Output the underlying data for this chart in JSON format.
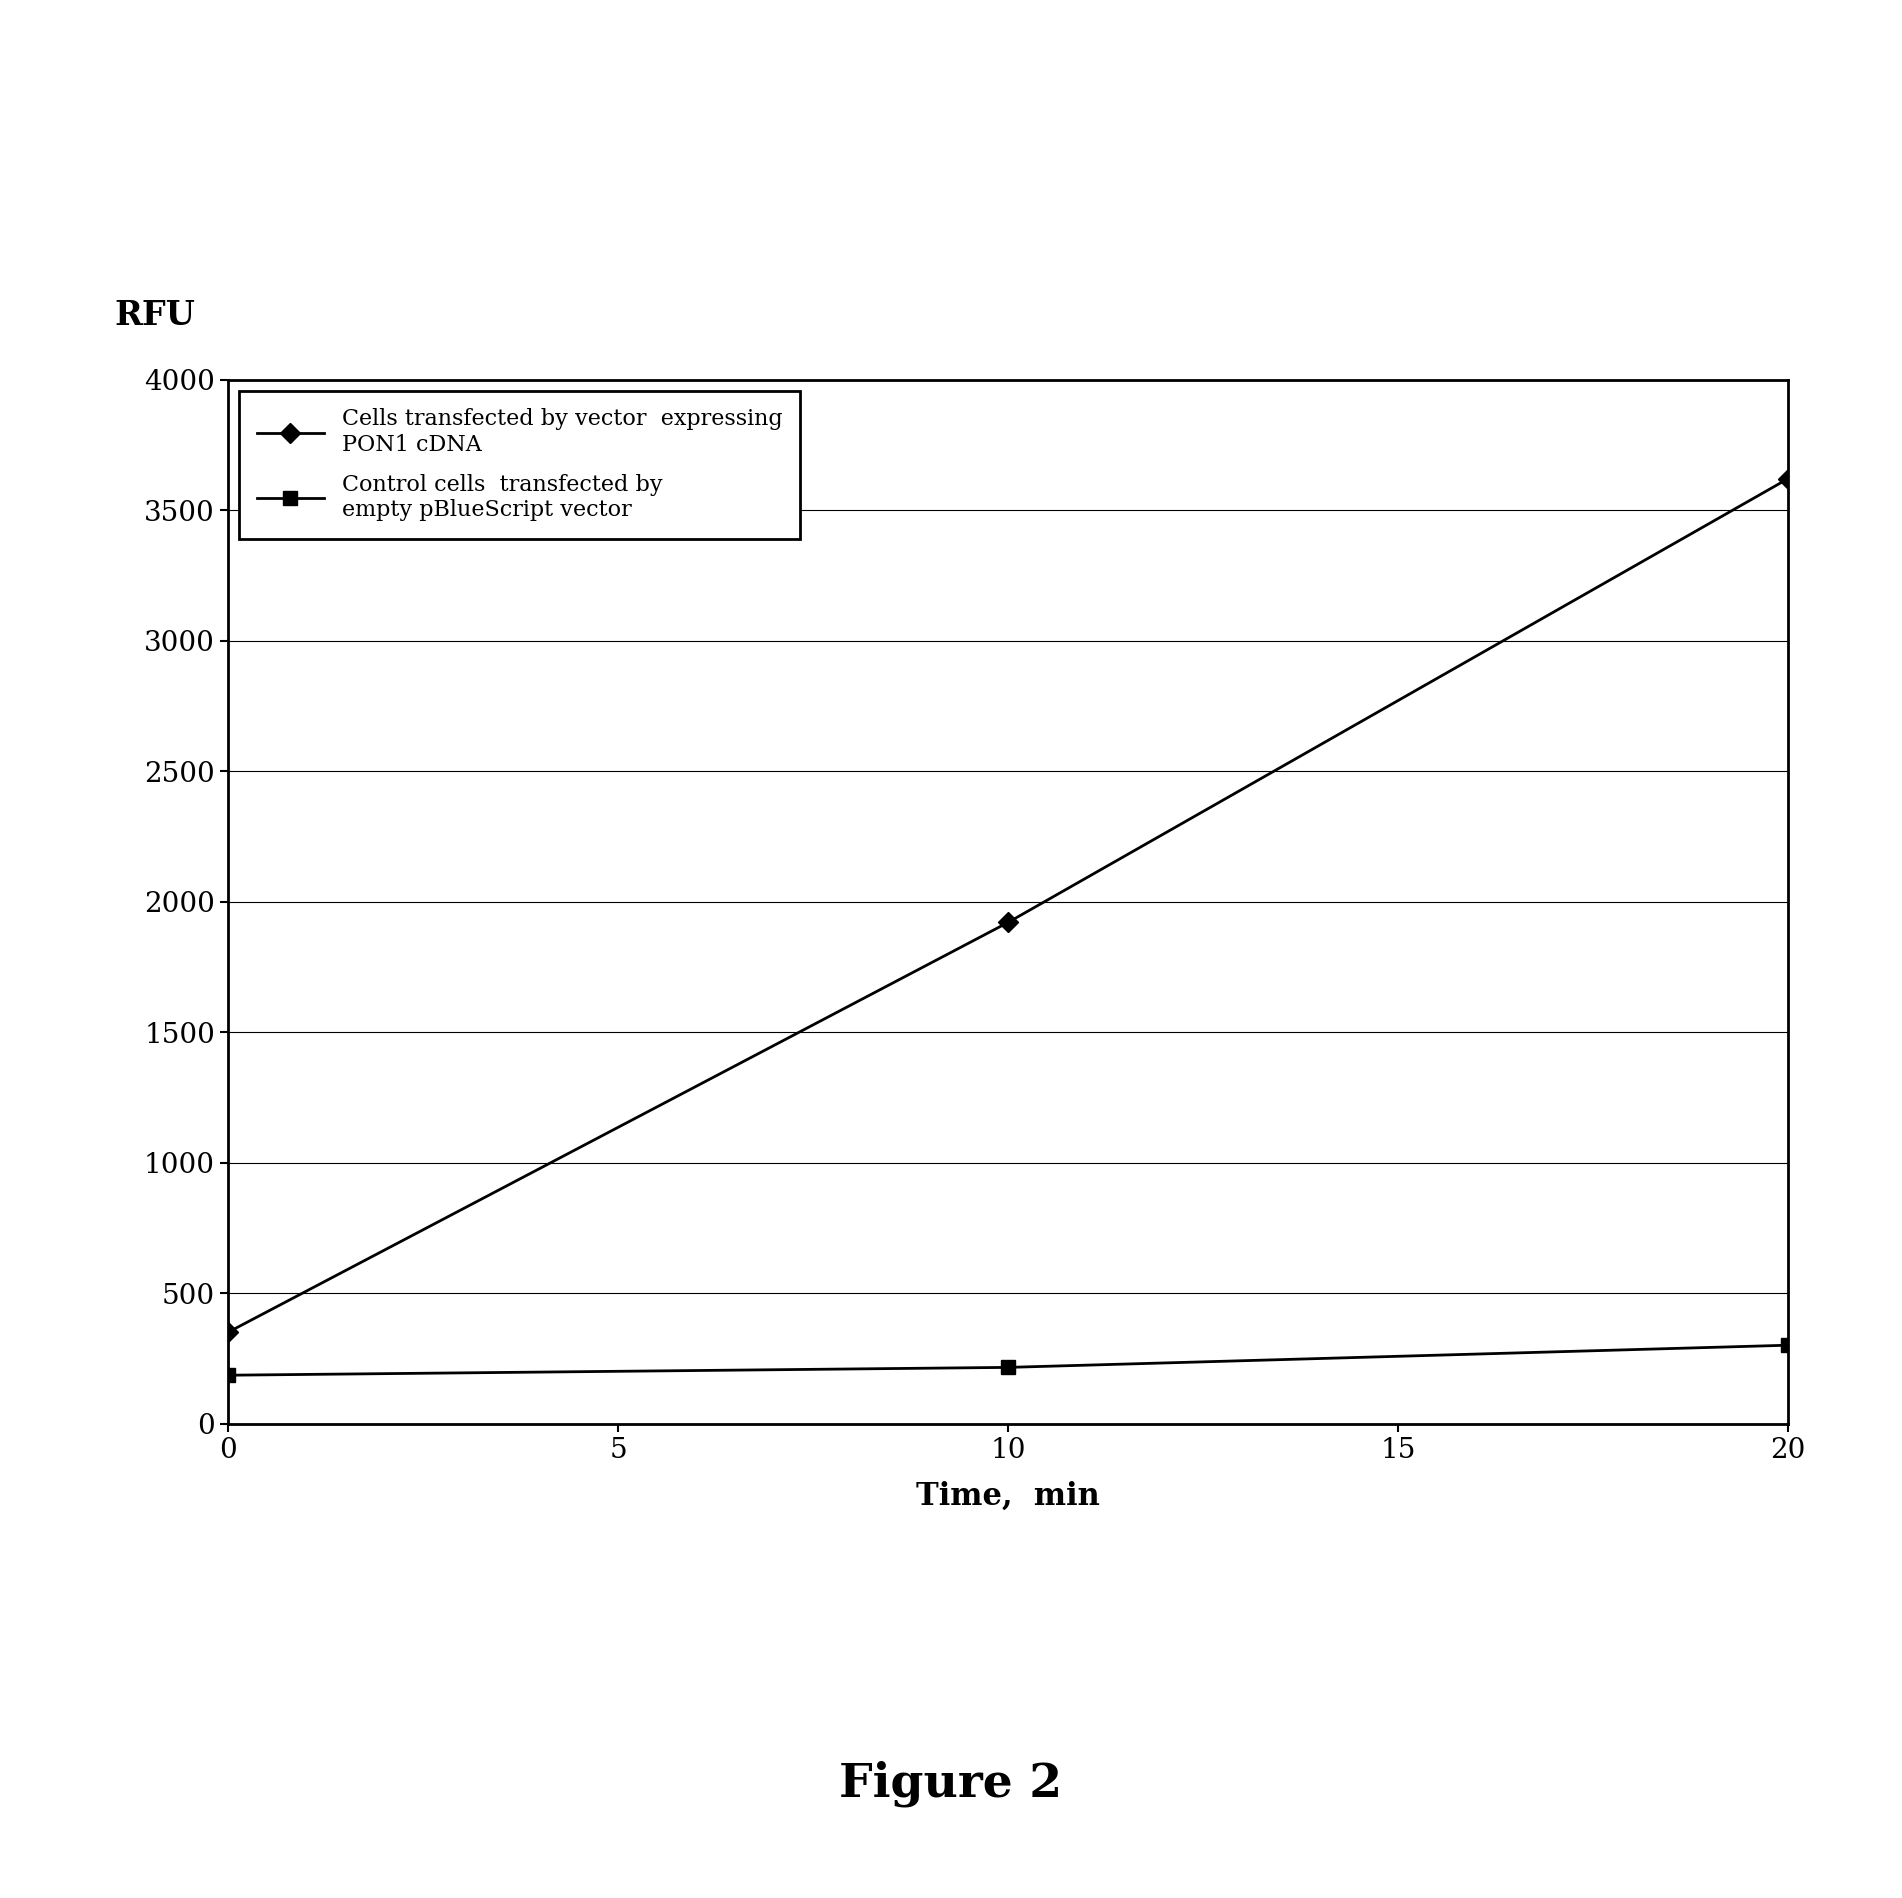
{
  "series1_x": [
    0,
    10,
    20
  ],
  "series1_y": [
    350,
    1920,
    3620
  ],
  "series2_x": [
    0,
    10,
    20
  ],
  "series2_y": [
    185,
    215,
    300
  ],
  "series1_label": "Cells transfected by vector  expressing\nPON1 cDNA",
  "series2_label": "Control cells  transfected by\nempty pBlueScript vector",
  "xlabel": "Time,  min",
  "ylabel": "RFU",
  "figure_label": "Figure 2",
  "xlim": [
    0,
    20
  ],
  "ylim": [
    0,
    4000
  ],
  "yticks": [
    0,
    500,
    1000,
    1500,
    2000,
    2500,
    3000,
    3500,
    4000
  ],
  "xticks": [
    0,
    5,
    10,
    15,
    20
  ],
  "background_color": "#ffffff",
  "line_color": "#000000",
  "marker_size": 10,
  "line_width": 2.0,
  "axis_label_fontsize": 22,
  "tick_fontsize": 20,
  "legend_fontsize": 16,
  "figure_label_fontsize": 34,
  "ylabel_fontsize": 24,
  "figwidth": 19.02,
  "figheight": 18.98,
  "dpi": 100
}
